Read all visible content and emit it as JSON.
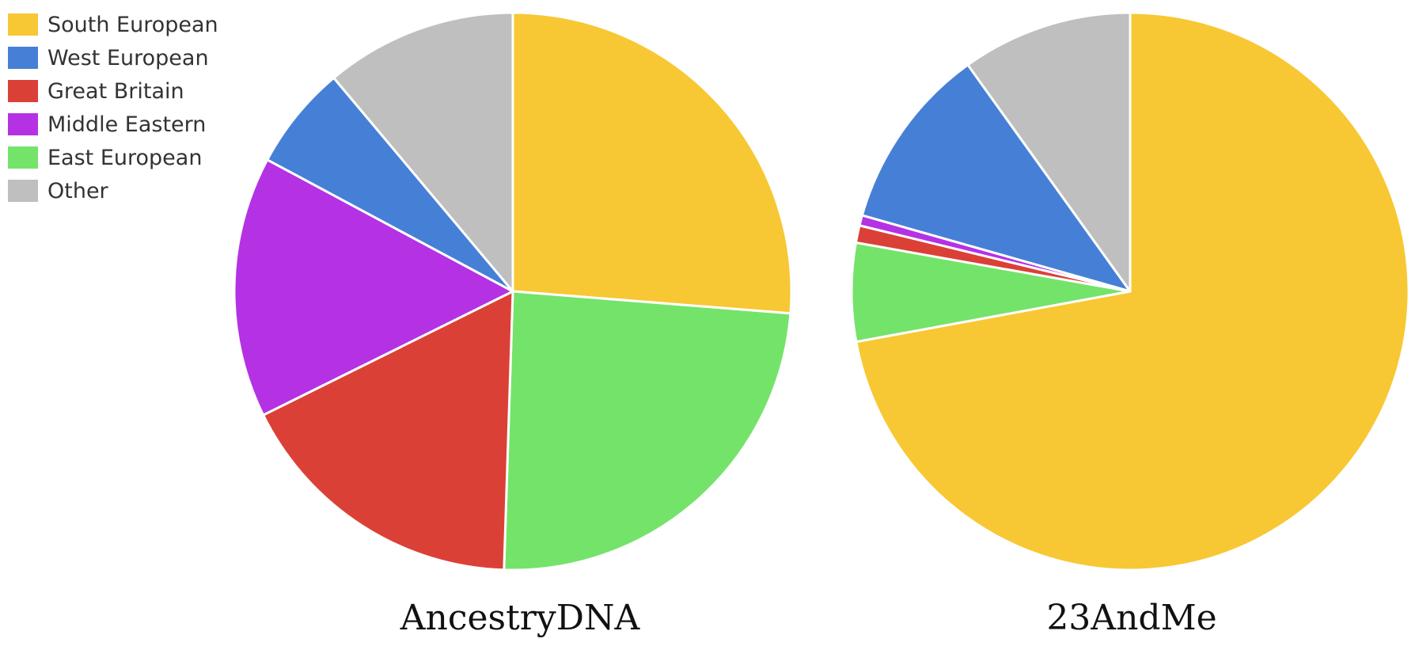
{
  "legend": {
    "items": [
      {
        "label": "South European",
        "color": "#F7C833"
      },
      {
        "label": "West European",
        "color": "#4680D6"
      },
      {
        "label": "Great Britain",
        "color": "#DB4037"
      },
      {
        "label": "Middle Eastern",
        "color": "#B432E4"
      },
      {
        "label": "East European",
        "color": "#74E36A"
      },
      {
        "label": "Other",
        "color": "#BFBFBF"
      }
    ]
  },
  "chart_data": [
    {
      "type": "pie",
      "title": "AncestryDNA",
      "categories": [
        "South European",
        "East European",
        "Great Britain",
        "Middle Eastern",
        "West European",
        "Other"
      ],
      "values": [
        26,
        24,
        17,
        15,
        6,
        11
      ],
      "colors": [
        "#F7C833",
        "#74E36A",
        "#DB4037",
        "#B432E4",
        "#4680D6",
        "#BFBFBF"
      ]
    },
    {
      "type": "pie",
      "title": "23AndMe",
      "categories": [
        "South European",
        "East European",
        "Great Britain",
        "Middle Eastern",
        "West European",
        "Other"
      ],
      "values": [
        72.1,
        5.7,
        1.0,
        0.6,
        10.7,
        9.9
      ],
      "colors": [
        "#F7C833",
        "#74E36A",
        "#DB4037",
        "#B432E4",
        "#4680D6",
        "#BFBFBF"
      ]
    }
  ]
}
